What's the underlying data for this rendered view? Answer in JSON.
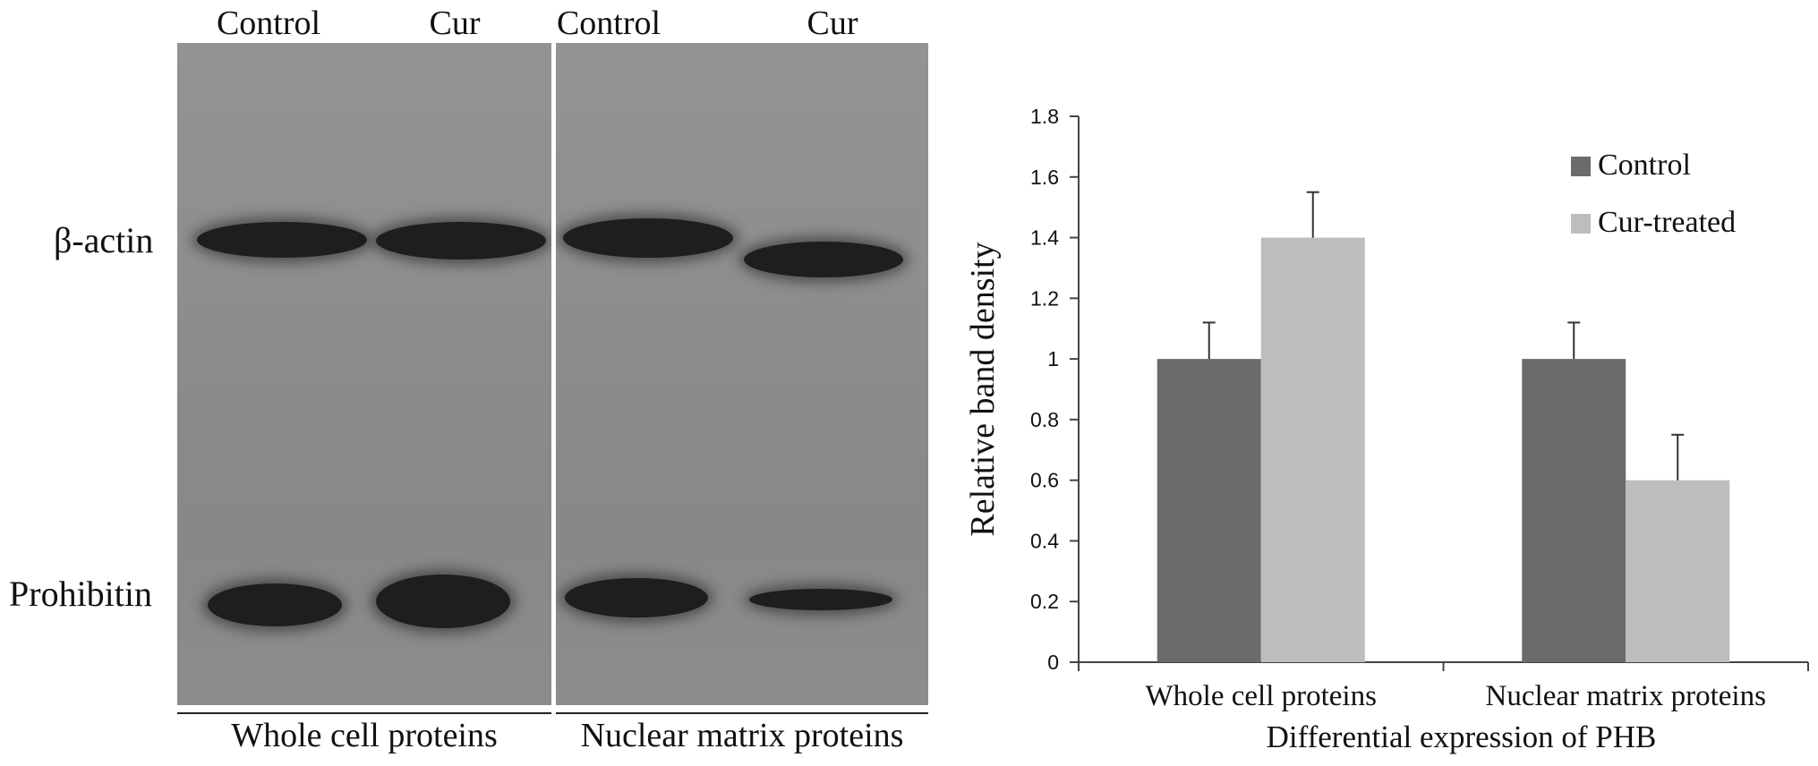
{
  "blot": {
    "lane_labels": [
      "Control",
      "Cur",
      "Control",
      "Cur"
    ],
    "row_labels": [
      "β-actin",
      "Prohibitin"
    ],
    "group_labels": [
      "Whole cell proteins",
      "Nuclear matrix proteins"
    ]
  },
  "chart_data": {
    "type": "bar",
    "categories": [
      "Whole cell proteins",
      "Nuclear matrix proteins"
    ],
    "series": [
      {
        "name": "Control",
        "values": [
          1.0,
          1.0
        ],
        "errors": [
          0.12,
          0.12
        ],
        "color": "#6b6b6b"
      },
      {
        "name": "Cur-treated",
        "values": [
          1.4,
          0.6
        ],
        "errors": [
          0.15,
          0.15
        ],
        "color": "#bdbdbd"
      }
    ],
    "title": "",
    "xlabel": "Differential expression of PHB",
    "ylabel": "Relative band density",
    "ylim": [
      0,
      1.8
    ],
    "yticks": [
      0,
      0.2,
      0.4,
      0.6,
      0.8,
      1,
      1.2,
      1.4,
      1.6,
      1.8
    ],
    "legend_position": "top-right",
    "grid": false
  }
}
